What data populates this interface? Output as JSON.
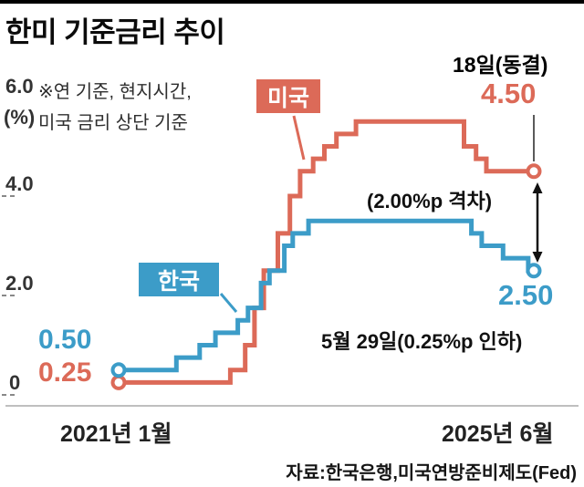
{
  "header": {
    "title": "한미 기준금리 추이"
  },
  "chart_data": {
    "type": "line",
    "line_style": "step-after",
    "title": "한미 기준금리 추이",
    "unit_label": "(%)",
    "note_line1": "※연 기준, 현지시간,",
    "note_line2": "미국 금리 상단 기준",
    "x_range": [
      2021.0,
      2025.46
    ],
    "ylim": [
      0,
      6.0
    ],
    "grid": false,
    "y_ticks": [
      {
        "value": 6.0,
        "label": "6.0"
      },
      {
        "value": 4.0,
        "label": "4.0"
      },
      {
        "value": 2.0,
        "label": "2.0"
      },
      {
        "value": 0,
        "label": "0"
      }
    ],
    "x_tick_labels": [
      "2021년 1월",
      "2025년 6월"
    ],
    "series": [
      {
        "name": "미국",
        "color": "#dc6a58",
        "points": [
          [
            2021.0,
            0.25
          ],
          [
            2022.2,
            0.5
          ],
          [
            2022.36,
            1.0
          ],
          [
            2022.46,
            1.75
          ],
          [
            2022.56,
            2.5
          ],
          [
            2022.71,
            3.25
          ],
          [
            2022.84,
            4.0
          ],
          [
            2022.95,
            4.5
          ],
          [
            2023.09,
            4.75
          ],
          [
            2023.21,
            5.0
          ],
          [
            2023.34,
            5.25
          ],
          [
            2023.55,
            5.5
          ],
          [
            2024.71,
            5.0
          ],
          [
            2024.84,
            4.75
          ],
          [
            2024.95,
            4.5
          ],
          [
            2025.46,
            4.5
          ]
        ]
      },
      {
        "name": "한국",
        "color": "#3c9cc8",
        "points": [
          [
            2021.0,
            0.5
          ],
          [
            2021.62,
            0.75
          ],
          [
            2021.87,
            1.0
          ],
          [
            2022.04,
            1.25
          ],
          [
            2022.28,
            1.5
          ],
          [
            2022.39,
            1.75
          ],
          [
            2022.53,
            2.25
          ],
          [
            2022.62,
            2.5
          ],
          [
            2022.78,
            3.0
          ],
          [
            2022.87,
            3.25
          ],
          [
            2023.04,
            3.5
          ],
          [
            2024.79,
            3.25
          ],
          [
            2024.9,
            3.0
          ],
          [
            2025.13,
            2.75
          ],
          [
            2025.4,
            2.5
          ],
          [
            2025.46,
            2.5
          ]
        ]
      }
    ]
  },
  "annotations": {
    "us_event": "18일(동결)",
    "us_rate": "4.50",
    "gap": "(2.00%p 격차)",
    "kr_rate": "2.50",
    "kr_event": "5월 29일(0.25%p 인하)",
    "kr_start": "0.50",
    "us_start": "0.25"
  },
  "footer": {
    "source": "자료:한국은행,미국연방준비제도(Fed)"
  }
}
